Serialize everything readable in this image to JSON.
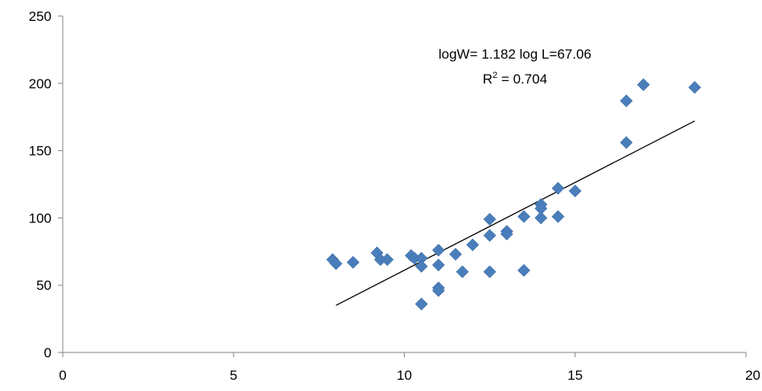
{
  "chart_data": {
    "type": "scatter",
    "title": "",
    "xlabel": "",
    "ylabel": "",
    "xlim": [
      0,
      20
    ],
    "ylim": [
      0,
      250
    ],
    "xticks": [
      "0",
      "5",
      "10",
      "15",
      "20"
    ],
    "yticks": [
      "0",
      "50",
      "100",
      "150",
      "200",
      "250"
    ],
    "grid": false,
    "legend": "none",
    "marker": "diamond",
    "marker_color": "#4A7EBB",
    "trendline_color": "#000000",
    "series": [
      {
        "points": [
          [
            7.9,
            69
          ],
          [
            8.0,
            66
          ],
          [
            8.5,
            67
          ],
          [
            9.2,
            74
          ],
          [
            9.3,
            69
          ],
          [
            9.5,
            69
          ],
          [
            10.2,
            72
          ],
          [
            10.3,
            70
          ],
          [
            10.5,
            70
          ],
          [
            10.5,
            64
          ],
          [
            10.5,
            36
          ],
          [
            11.0,
            76
          ],
          [
            11.0,
            65
          ],
          [
            11.0,
            48
          ],
          [
            11.0,
            46
          ],
          [
            11.5,
            73
          ],
          [
            11.7,
            60
          ],
          [
            12.0,
            80
          ],
          [
            12.5,
            99
          ],
          [
            12.5,
            87
          ],
          [
            12.5,
            60
          ],
          [
            13.0,
            90
          ],
          [
            13.0,
            88
          ],
          [
            13.5,
            101
          ],
          [
            13.5,
            61
          ],
          [
            14.0,
            110
          ],
          [
            14.0,
            107
          ],
          [
            14.0,
            100
          ],
          [
            14.5,
            122
          ],
          [
            14.5,
            101
          ],
          [
            15.0,
            120
          ],
          [
            16.5,
            187
          ],
          [
            16.5,
            156
          ],
          [
            17.0,
            199
          ],
          [
            18.5,
            197
          ]
        ]
      }
    ],
    "trendline": {
      "x": [
        8.0,
        18.5
      ],
      "y": [
        35,
        172
      ]
    },
    "annotation": {
      "equation": "logW= 1.182 log L=67.06",
      "r2_prefix": "R",
      "r2_sup": "2",
      "r2_suffix": " = 0.704"
    }
  }
}
